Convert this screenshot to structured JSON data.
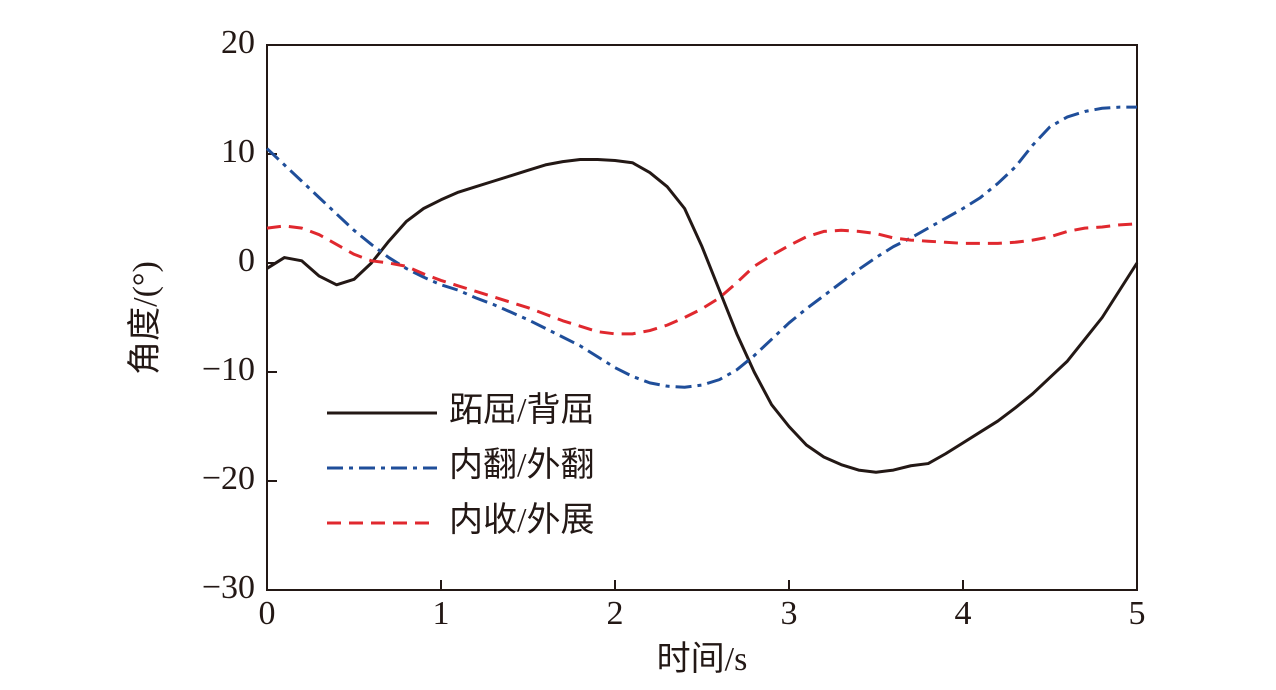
{
  "chart_data": {
    "type": "line",
    "xlabel": "时间/s",
    "ylabel": "角度/(°)",
    "x": [
      0,
      0.1,
      0.2,
      0.3,
      0.4,
      0.5,
      0.6,
      0.7,
      0.8,
      0.9,
      1.0,
      1.1,
      1.2,
      1.3,
      1.4,
      1.5,
      1.6,
      1.7,
      1.8,
      1.9,
      2.0,
      2.1,
      2.2,
      2.3,
      2.4,
      2.5,
      2.6,
      2.7,
      2.8,
      2.9,
      3.0,
      3.1,
      3.2,
      3.3,
      3.4,
      3.5,
      3.6,
      3.7,
      3.8,
      3.9,
      4.0,
      4.1,
      4.2,
      4.3,
      4.4,
      4.5,
      4.6,
      4.7,
      4.8,
      4.9,
      5.0
    ],
    "series": [
      {
        "name": "跖屈/背屈",
        "color": "#231815",
        "dash": "solid",
        "values": [
          -0.5,
          0.5,
          0.2,
          -1.2,
          -2,
          -1.5,
          0,
          2,
          3.8,
          5,
          5.8,
          6.5,
          7,
          7.5,
          8,
          8.5,
          9,
          9.3,
          9.5,
          9.5,
          9.4,
          9.2,
          8.3,
          7,
          5,
          1.5,
          -2.5,
          -6.5,
          -10,
          -13,
          -15,
          -16.7,
          -17.8,
          -18.5,
          -19,
          -19.2,
          -19,
          -18.6,
          -18.4,
          -17.5,
          -16.5,
          -15.5,
          -14.5,
          -13.3,
          -12,
          -10.5,
          -9,
          -7,
          -5,
          -2.5,
          0
        ]
      },
      {
        "name": "内翻/外翻",
        "color": "#1f4e9a",
        "dash": "dashdot",
        "values": [
          10.5,
          9,
          7.5,
          6,
          4.5,
          3,
          1.7,
          0.5,
          -0.5,
          -1.3,
          -2,
          -2.5,
          -3.2,
          -3.8,
          -4.5,
          -5.2,
          -6,
          -6.8,
          -7.6,
          -8.6,
          -9.6,
          -10.4,
          -11,
          -11.3,
          -11.4,
          -11.2,
          -10.7,
          -9.8,
          -8.5,
          -7,
          -5.5,
          -4.2,
          -3,
          -1.8,
          -0.6,
          0.5,
          1.5,
          2.3,
          3.2,
          4.1,
          5,
          6,
          7.3,
          8.8,
          10.8,
          12.5,
          13.4,
          13.9,
          14.2,
          14.3,
          14.3
        ]
      },
      {
        "name": "内收/外展",
        "color": "#e0282e",
        "dash": "dashed",
        "values": [
          3.2,
          3.4,
          3.2,
          2.6,
          1.7,
          0.8,
          0.2,
          0,
          -0.3,
          -1,
          -1.6,
          -2.1,
          -2.6,
          -3.1,
          -3.6,
          -4.1,
          -4.7,
          -5.3,
          -5.8,
          -6.3,
          -6.5,
          -6.5,
          -6.2,
          -5.7,
          -5,
          -4.2,
          -3.2,
          -1.8,
          -0.3,
          0.7,
          1.6,
          2.4,
          2.9,
          3,
          2.9,
          2.7,
          2.3,
          2.1,
          2,
          1.9,
          1.8,
          1.8,
          1.8,
          1.9,
          2.1,
          2.4,
          2.9,
          3.2,
          3.3,
          3.5,
          3.6
        ]
      }
    ],
    "xlim": [
      0,
      5
    ],
    "xticks": [
      0,
      1,
      2,
      3,
      4,
      5
    ],
    "ylim": [
      -30,
      20
    ],
    "yticks": [
      {
        "value": -30,
        "label": "−30"
      },
      {
        "value": -20,
        "label": "−20"
      },
      {
        "value": -10,
        "label": "−10"
      },
      0,
      10,
      20
    ],
    "grid": false,
    "legend": "lower left"
  }
}
